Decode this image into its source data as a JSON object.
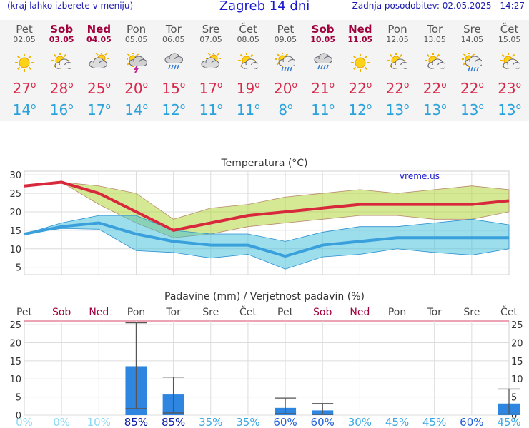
{
  "header": {
    "menu_hint": "(kraj lahko izberete v meniju)",
    "title": "Zagreb 14 dni",
    "updated": "Zadnja posodobitev: 02.05.2025 - 14:27"
  },
  "days": [
    {
      "name": "Pet",
      "date": "02.05",
      "weekend": false,
      "icon": "sun-icon",
      "tmax": "27",
      "tmin": "14"
    },
    {
      "name": "Sob",
      "date": "03.05",
      "weekend": true,
      "icon": "sun-cloud-icon",
      "tmax": "28",
      "tmin": "16"
    },
    {
      "name": "Ned",
      "date": "04.05",
      "weekend": true,
      "icon": "cloud-sun-icon",
      "tmax": "25",
      "tmin": "17"
    },
    {
      "name": "Pon",
      "date": "05.05",
      "weekend": false,
      "icon": "thunderstorm-icon",
      "tmax": "20",
      "tmin": "14"
    },
    {
      "name": "Tor",
      "date": "06.05",
      "weekend": false,
      "icon": "rain-icon",
      "tmax": "15",
      "tmin": "12"
    },
    {
      "name": "Sre",
      "date": "07.05",
      "weekend": false,
      "icon": "cloud-sun-icon",
      "tmax": "17",
      "tmin": "11"
    },
    {
      "name": "Čet",
      "date": "08.05",
      "weekend": false,
      "icon": "sun-cloud-icon",
      "tmax": "19",
      "tmin": "11"
    },
    {
      "name": "Pet",
      "date": "09.05",
      "weekend": false,
      "icon": "sun-rain-icon",
      "tmax": "20",
      "tmin": "8"
    },
    {
      "name": "Sob",
      "date": "10.05",
      "weekend": true,
      "icon": "rain-icon",
      "tmax": "21",
      "tmin": "11"
    },
    {
      "name": "Ned",
      "date": "11.05",
      "weekend": true,
      "icon": "sun-icon",
      "tmax": "22",
      "tmin": "12"
    },
    {
      "name": "Pon",
      "date": "12.05",
      "weekend": false,
      "icon": "sun-cloud-icon",
      "tmax": "22",
      "tmin": "13"
    },
    {
      "name": "Tor",
      "date": "13.05",
      "weekend": false,
      "icon": "sun-cloud-icon",
      "tmax": "22",
      "tmin": "13"
    },
    {
      "name": "Sre",
      "date": "14.05",
      "weekend": false,
      "icon": "sun-rain-icon",
      "tmax": "22",
      "tmin": "13"
    },
    {
      "name": "Čet",
      "date": "15.05",
      "weekend": false,
      "icon": "sun-cloud-icon",
      "tmax": "23",
      "tmin": "13"
    }
  ],
  "colors": {
    "weekend": "#a0003c",
    "tmax": "#d8284a",
    "tmin": "#2aa2dc",
    "title": "#1818d0",
    "precip_bar": "#2e86e0"
  },
  "chart_data": [
    {
      "type": "line",
      "title": "Temperatura (°C)",
      "watermark": "vreme.us",
      "ylim": [
        3,
        31
      ],
      "yticks": [
        5,
        10,
        15,
        20,
        25,
        30
      ],
      "grid": true,
      "series": [
        {
          "role": "max",
          "values": [
            27,
            28,
            25,
            20,
            15,
            17,
            19,
            20,
            21,
            22,
            22,
            22,
            22,
            23
          ],
          "range_low": [
            27,
            28,
            22,
            17,
            13,
            14,
            16,
            17,
            18,
            19,
            19,
            18,
            18,
            20
          ],
          "range_high": [
            27,
            28,
            27,
            25,
            18,
            21,
            22,
            24,
            25,
            26,
            25,
            26,
            27,
            26
          ],
          "color": "#d8283c"
        },
        {
          "role": "min",
          "values": [
            14,
            16,
            17,
            14,
            12,
            11,
            11,
            8,
            11,
            12,
            13,
            13,
            13,
            13
          ],
          "range_low": [
            14,
            15.5,
            15.3,
            9.5,
            9,
            7.5,
            8.5,
            4.5,
            7.8,
            8.5,
            10,
            9,
            8.3,
            10
          ],
          "range_high": [
            14,
            17,
            19,
            19,
            15,
            14,
            14,
            12,
            14.5,
            16,
            16,
            17,
            18,
            16.5
          ],
          "color": "#3aa0dc"
        }
      ]
    },
    {
      "type": "bar",
      "title": "Padavine (mm) / Verjetnost padavin (%)",
      "categories": [
        "Pet",
        "Sob",
        "Ned",
        "Pon",
        "Tor",
        "Sre",
        "Čet",
        "Pet",
        "Sob",
        "Ned",
        "Pon",
        "Tor",
        "Sre",
        "Čet"
      ],
      "weekend": [
        false,
        true,
        true,
        false,
        false,
        false,
        false,
        false,
        true,
        true,
        false,
        false,
        false,
        false
      ],
      "values": [
        0,
        0,
        0,
        13.5,
        5.7,
        0,
        0,
        2,
        1.3,
        0,
        0,
        0,
        0,
        3.2
      ],
      "error_low": [
        0,
        0,
        0,
        1.8,
        0.6,
        0,
        0,
        0.4,
        0.2,
        0,
        0,
        0,
        0,
        0.3
      ],
      "error_high": [
        0,
        0,
        0,
        25.5,
        10.5,
        0,
        0,
        4.7,
        3.2,
        0,
        0,
        0,
        0,
        7.2
      ],
      "probability": [
        "0%",
        "0%",
        "10%",
        "85%",
        "85%",
        "35%",
        "35%",
        "60%",
        "60%",
        "30%",
        "45%",
        "45%",
        "60%",
        "45%"
      ],
      "probability_level": [
        0,
        0,
        0,
        3,
        3,
        1,
        1,
        2,
        2,
        1,
        1,
        1,
        2,
        1
      ],
      "ylim": [
        0,
        26
      ],
      "yticks": [
        0,
        5,
        10,
        15,
        20,
        25
      ],
      "grid": true
    }
  ]
}
